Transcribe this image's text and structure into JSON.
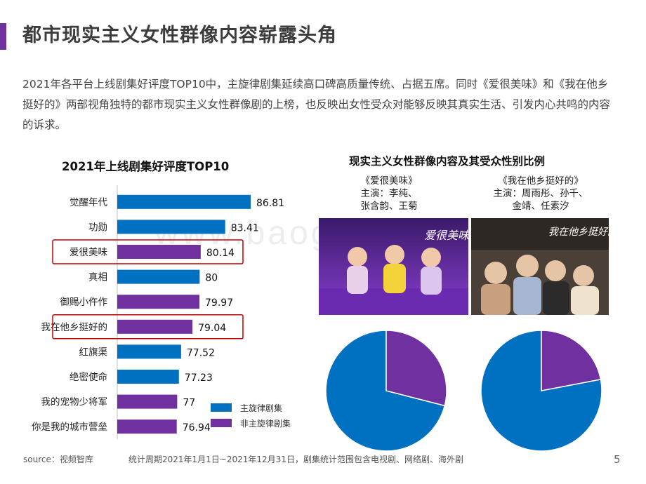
{
  "page": {
    "title": "都市现实主义女性群像内容崭露头角",
    "intro": "2021年各平台上线剧集好评度TOP10中，主旋律剧集延续高口碑高质量传统、占据五席。同时《爱很美味》和《我在他乡挺好的》两部视角独特的都市现实主义女性群像剧的上榜，也反映出女性受众对能够反映其真实生活、引发内心共鸣的内容的诉求。",
    "footer_source": "source：视频智库",
    "footer_note": "统计周期2021年1月1日~2021年12月31日，剧集统计范围包含电视剧、网络剧、海外剧",
    "page_number": "5",
    "watermark": "www.baogao.com"
  },
  "colors": {
    "mainstream": "#0070c0",
    "non_mainstream": "#7030a0",
    "accent": "#7030a0",
    "highlight_box": "#c00000"
  },
  "chart_data": [
    {
      "type": "bar",
      "orientation": "horizontal",
      "title": "2021年上线剧集好评度TOP10",
      "categories": [
        "觉醒年代",
        "功勋",
        "爱很美味",
        "真相",
        "御赐小仵作",
        "我在他乡挺好的",
        "红旗渠",
        "绝密使命",
        "我的宠物少将军",
        "你是我的城市营垒"
      ],
      "values": [
        86.81,
        83.41,
        80.14,
        80,
        79.97,
        79.04,
        77.52,
        77.23,
        77,
        76.94
      ],
      "value_labels": [
        "86.81",
        "83.41",
        "80.14",
        "80",
        "79.97",
        "79.04",
        "77.52",
        "77.23",
        "77",
        "76.94"
      ],
      "group": [
        "主旋律剧集",
        "主旋律剧集",
        "非主旋律剧集",
        "主旋律剧集",
        "非主旋律剧集",
        "非主旋律剧集",
        "主旋律剧集",
        "主旋律剧集",
        "非主旋律剧集",
        "非主旋律剧集"
      ],
      "highlighted": [
        "爱很美味",
        "我在他乡挺好的"
      ],
      "legend": [
        "主旋律剧集",
        "非主旋律剧集"
      ],
      "legend_placement": "bottom-right",
      "grid": false
    },
    {
      "type": "pie",
      "title": "现实主义女性群像内容及其受众性别比例",
      "show": "《爱很美味》",
      "cast": "主演：李纯、张含韵、王菊",
      "values": [
        0.71,
        0.29
      ],
      "colors": [
        "#0070c0",
        "#7030a0"
      ]
    },
    {
      "type": "pie",
      "title": "现实主义女性群像内容及其受众性别比例",
      "show": "《我在他乡挺好的》",
      "cast": "主演：周雨彤、孙千、金靖、任素汐",
      "values": [
        0.78,
        0.22
      ],
      "colors": [
        "#0070c0",
        "#7030a0"
      ]
    }
  ],
  "right_panel": {
    "title": "现实主义女性群像内容及其受众性别比例",
    "show1": {
      "name": "《爱很美味》",
      "cast1": "主演：李纯、",
      "cast2": "张含韵、王菊",
      "still_text": "爱很美味"
    },
    "show2": {
      "name": "《我在他乡挺好的》",
      "cast1": "主演：周雨彤、孙千、",
      "cast2": "金靖、任素汐",
      "still_text": "我在他乡挺好的"
    }
  }
}
